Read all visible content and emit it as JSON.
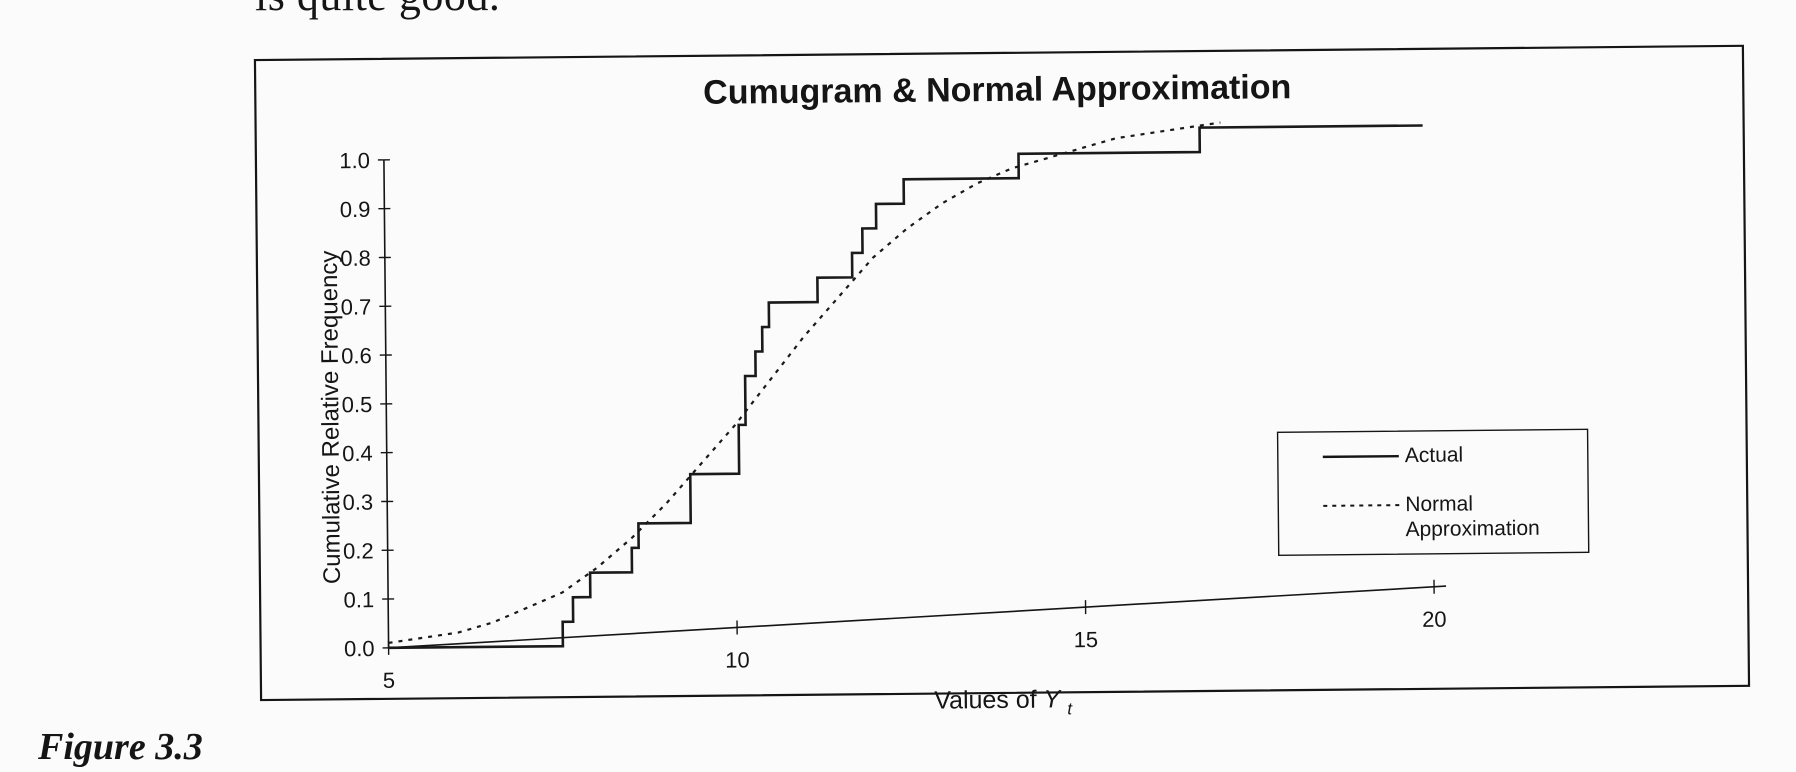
{
  "page": {
    "top_text": "is quite good.",
    "figure_label": "Figure 3.3"
  },
  "chart_data": {
    "type": "line",
    "title": "Cumugram & Normal Approximation",
    "xlabel": "Values of ",
    "xlabel_symbol": "Y",
    "xlabel_subscript": "t",
    "ylabel": "Cumulative Relative Frequency",
    "xlim": [
      5,
      20
    ],
    "ylim": [
      0,
      1
    ],
    "x_ticks": [
      "5",
      "10",
      "15",
      "20"
    ],
    "y_ticks": [
      "0.0",
      "0.1",
      "0.2",
      "0.3",
      "0.4",
      "0.5",
      "0.6",
      "0.7",
      "0.8",
      "0.9",
      "1.0"
    ],
    "grid": false,
    "legend_position": "lower-right",
    "series": [
      {
        "name": "Actual",
        "style": "solid-step",
        "color": "#1a1a1a",
        "x": [
          5.0,
          7.5,
          7.5,
          7.65,
          7.65,
          7.9,
          7.9,
          8.5,
          8.5,
          8.6,
          8.6,
          9.35,
          9.35,
          10.05,
          10.05,
          10.15,
          10.15,
          10.3,
          10.3,
          10.4,
          10.4,
          10.5,
          10.5,
          11.2,
          11.2,
          11.7,
          11.7,
          11.85,
          11.85,
          12.05,
          12.05,
          12.45,
          12.45,
          14.1,
          14.1,
          16.7,
          16.7,
          19.9
        ],
        "values": [
          0.0,
          0.0,
          0.05,
          0.05,
          0.1,
          0.1,
          0.15,
          0.15,
          0.2,
          0.2,
          0.25,
          0.25,
          0.35,
          0.35,
          0.45,
          0.45,
          0.55,
          0.55,
          0.6,
          0.6,
          0.65,
          0.65,
          0.7,
          0.7,
          0.75,
          0.75,
          0.8,
          0.8,
          0.85,
          0.85,
          0.9,
          0.9,
          0.95,
          0.95,
          1.0,
          1.0,
          1.05,
          1.05
        ]
      },
      {
        "name": "Normal Approximation",
        "style": "dotted",
        "color": "#1a1a1a",
        "x": [
          5.0,
          5.5,
          6.0,
          6.5,
          7.0,
          7.5,
          8.0,
          8.5,
          9.0,
          9.5,
          10.0,
          10.5,
          11.0,
          11.5,
          12.0,
          12.5,
          13.0,
          13.5,
          14.0,
          14.5,
          15.0,
          15.5,
          16.0,
          16.5,
          17.0
        ],
        "values": [
          0.01,
          0.02,
          0.03,
          0.05,
          0.08,
          0.11,
          0.16,
          0.22,
          0.29,
          0.37,
          0.45,
          0.54,
          0.63,
          0.71,
          0.79,
          0.85,
          0.9,
          0.94,
          0.97,
          0.99,
          1.01,
          1.03,
          1.04,
          1.05,
          1.06
        ]
      }
    ]
  }
}
